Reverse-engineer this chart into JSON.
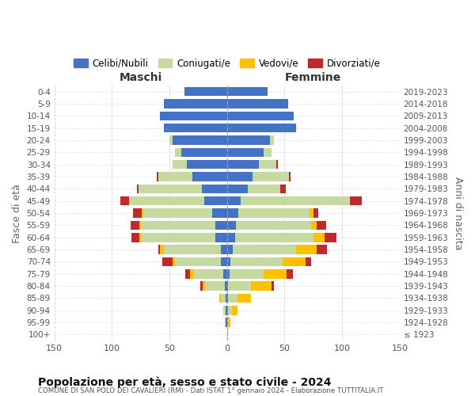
{
  "age_groups": [
    "100+",
    "95-99",
    "90-94",
    "85-89",
    "80-84",
    "75-79",
    "70-74",
    "65-69",
    "60-64",
    "55-59",
    "50-54",
    "45-49",
    "40-44",
    "35-39",
    "30-34",
    "25-29",
    "20-24",
    "15-19",
    "10-14",
    "5-9",
    "0-4"
  ],
  "birth_years": [
    "≤ 1923",
    "1924-1928",
    "1929-1933",
    "1934-1938",
    "1939-1943",
    "1944-1948",
    "1949-1953",
    "1954-1958",
    "1959-1963",
    "1964-1968",
    "1969-1973",
    "1974-1978",
    "1979-1983",
    "1984-1988",
    "1989-1993",
    "1994-1998",
    "1999-2003",
    "2004-2008",
    "2009-2013",
    "2014-2018",
    "2019-2023"
  ],
  "males": {
    "celibi": [
      0,
      1,
      1,
      1,
      2,
      3,
      5,
      5,
      10,
      10,
      13,
      20,
      22,
      30,
      35,
      40,
      47,
      55,
      58,
      55,
      37
    ],
    "coniugati": [
      0,
      1,
      2,
      4,
      17,
      26,
      40,
      50,
      65,
      65,
      60,
      65,
      55,
      30,
      12,
      5,
      3,
      0,
      0,
      0,
      0
    ],
    "vedovi": [
      0,
      0,
      0,
      2,
      2,
      3,
      2,
      3,
      1,
      1,
      1,
      0,
      0,
      0,
      0,
      0,
      0,
      0,
      0,
      0,
      0
    ],
    "divorziati": [
      0,
      0,
      0,
      0,
      2,
      4,
      9,
      2,
      7,
      8,
      8,
      8,
      1,
      1,
      0,
      0,
      0,
      0,
      0,
      0,
      0
    ]
  },
  "females": {
    "nubili": [
      0,
      0,
      1,
      1,
      1,
      2,
      3,
      5,
      7,
      8,
      10,
      12,
      18,
      22,
      28,
      32,
      37,
      60,
      58,
      53,
      35
    ],
    "coniugate": [
      0,
      1,
      3,
      8,
      20,
      30,
      45,
      55,
      68,
      65,
      62,
      95,
      28,
      32,
      15,
      7,
      4,
      0,
      0,
      0,
      0
    ],
    "vedove": [
      1,
      2,
      5,
      12,
      18,
      20,
      20,
      18,
      10,
      5,
      3,
      0,
      0,
      0,
      0,
      0,
      0,
      0,
      0,
      0,
      0
    ],
    "divorziate": [
      0,
      0,
      0,
      0,
      2,
      5,
      5,
      9,
      10,
      8,
      4,
      10,
      5,
      1,
      1,
      0,
      0,
      0,
      0,
      0,
      0
    ]
  },
  "colors": {
    "celibi": "#4472c4",
    "coniugati": "#c5d9a0",
    "vedovi": "#ffc000",
    "divorziati": "#c0282a"
  },
  "xlim": 150,
  "title": "Popolazione per età, sesso e stato civile - 2024",
  "subtitle": "COMUNE DI SAN POLO DEI CAVALIERI (RM) - Dati ISTAT 1° gennaio 2024 - Elaborazione TUTTITALIA.IT",
  "ylabel_left": "Fasce di età",
  "ylabel_right": "Anni di nascita",
  "legend_labels": [
    "Celibi/Nubili",
    "Coniugati/e",
    "Vedovi/e",
    "Divorziati/e"
  ],
  "maschi_label": "Maschi",
  "femmine_label": "Femmine",
  "background_color": "#ffffff",
  "grid_color": "#cccccc"
}
